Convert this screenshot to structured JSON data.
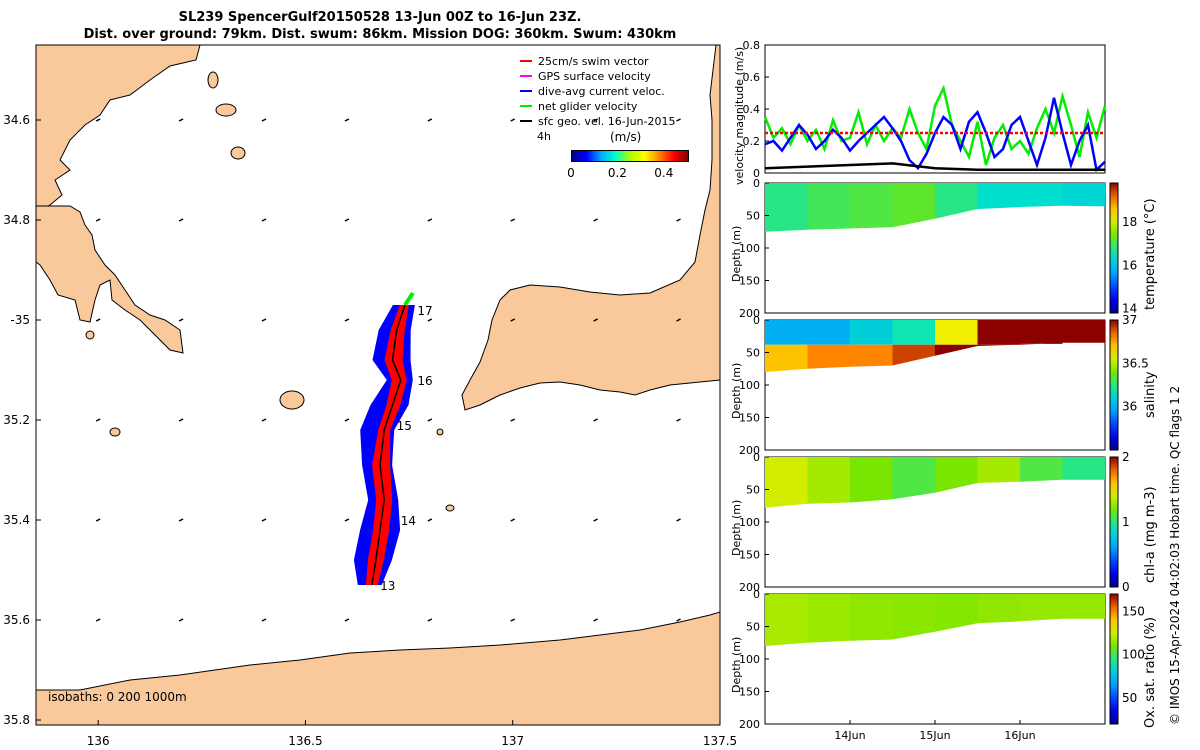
{
  "title_line1": "SL239 SpencerGulf20150528 13-Jun 00Z to 16-Jun 23Z.",
  "title_line2": "Dist. over ground: 79km. Dist. swum: 86km. Mission DOG: 360km. Swum: 430km",
  "credit": "© IMOS 15-Apr-2024 04:02:03 Hobart time. QC flags 1  2",
  "colors": {
    "land": "#f9c99b",
    "red": "#ff0000",
    "blue": "#0000ff",
    "green": "#00ee00",
    "magenta": "#ff00ff"
  },
  "chart_data": [
    {
      "type": "scatter",
      "name": "map",
      "xlim": [
        135.85,
        137.5
      ],
      "ylim": [
        -35.81,
        -34.45
      ],
      "x_ticks": [
        136,
        136.5,
        137,
        137.5
      ],
      "x_tick_labels": [
        "136",
        "136.5",
        "137",
        "137.5"
      ],
      "y_ticks": [
        -34.6,
        -34.8,
        -35.0,
        -35.2,
        -35.4,
        -35.6,
        -35.8
      ],
      "y_tick_labels": [
        "34.6",
        "34.8",
        "-35",
        "35.2",
        "35.4",
        "35.6",
        "35.8"
      ],
      "legend": [
        {
          "label": "25cm/s swim vector",
          "color": "#ff0000"
        },
        {
          "label": "GPS surface velocity",
          "color": "#ff00ff"
        },
        {
          "label": "dive-avg current veloc.",
          "color": "#0000ff"
        },
        {
          "label": "net glider velocity",
          "color": "#00ee00"
        },
        {
          "label": "sfc geo. vel. 16-Jun-2015",
          "color": "#000000"
        }
      ],
      "legend_note": "4h",
      "colorbar": {
        "label": "(m/s)",
        "ticks": [
          0,
          0.2,
          0.4
        ],
        "tick_labels": [
          "0",
          "0.2",
          "0.4"
        ],
        "range": [
          0,
          0.5
        ]
      },
      "isobaths_text": "isobaths: 0   200  1000m",
      "track": [
        [
          136.74,
          -34.97
        ],
        [
          136.72,
          -35.02
        ],
        [
          136.71,
          -35.08
        ],
        [
          136.73,
          -35.12
        ],
        [
          136.71,
          -35.17
        ],
        [
          136.69,
          -35.22
        ],
        [
          136.68,
          -35.29
        ],
        [
          136.69,
          -35.36
        ],
        [
          136.68,
          -35.42
        ],
        [
          136.67,
          -35.48
        ],
        [
          136.66,
          -35.53
        ]
      ],
      "day_labels": [
        {
          "text": "17",
          "lon": 136.77,
          "lat": -34.99
        },
        {
          "text": "16",
          "lon": 136.77,
          "lat": -35.13
        },
        {
          "text": "15",
          "lon": 136.72,
          "lat": -35.22
        },
        {
          "text": "14",
          "lon": 136.73,
          "lat": -35.41
        },
        {
          "text": "13",
          "lon": 136.68,
          "lat": -35.54
        }
      ],
      "geo_vel_grid_lons": [
        136.0,
        136.2,
        136.4,
        136.6,
        136.8,
        137.0,
        137.2,
        137.4
      ],
      "geo_vel_grid_lats": [
        -34.6,
        -34.8,
        -35.0,
        -35.2,
        -35.4,
        -35.6
      ]
    },
    {
      "type": "line",
      "name": "velocity",
      "ylabel": "velocity magnitude (m/s)",
      "ylim": [
        0,
        0.8
      ],
      "y_ticks": [
        0,
        0.2,
        0.4,
        0.6,
        0.8
      ],
      "y_tick_labels": [
        "0",
        "0.2",
        "0.4",
        "0.6",
        "0.8"
      ],
      "xlim": [
        0,
        4
      ],
      "series": [
        {
          "name": "net glider velocity",
          "color": "#00ee00",
          "x": [
            0,
            0.1,
            0.2,
            0.3,
            0.4,
            0.5,
            0.6,
            0.7,
            0.8,
            0.9,
            1.0,
            1.1,
            1.2,
            1.3,
            1.4,
            1.5,
            1.6,
            1.7,
            1.8,
            1.9,
            2.0,
            2.1,
            2.2,
            2.3,
            2.4,
            2.5,
            2.6,
            2.7,
            2.8,
            2.9,
            3.0,
            3.1,
            3.2,
            3.3,
            3.4,
            3.5,
            3.6,
            3.7,
            3.8,
            3.9,
            4.0
          ],
          "values": [
            0.35,
            0.22,
            0.28,
            0.18,
            0.3,
            0.2,
            0.27,
            0.15,
            0.33,
            0.2,
            0.22,
            0.38,
            0.18,
            0.3,
            0.2,
            0.28,
            0.22,
            0.4,
            0.25,
            0.15,
            0.42,
            0.53,
            0.3,
            0.2,
            0.1,
            0.32,
            0.05,
            0.22,
            0.3,
            0.15,
            0.2,
            0.12,
            0.28,
            0.4,
            0.25,
            0.48,
            0.3,
            0.1,
            0.38,
            0.22,
            0.42
          ]
        },
        {
          "name": "dive-avg current veloc.",
          "color": "#0000ff",
          "x": [
            0,
            0.1,
            0.2,
            0.3,
            0.4,
            0.5,
            0.6,
            0.7,
            0.8,
            0.9,
            1.0,
            1.1,
            1.2,
            1.3,
            1.4,
            1.5,
            1.6,
            1.7,
            1.8,
            1.9,
            2.0,
            2.1,
            2.2,
            2.3,
            2.4,
            2.5,
            2.6,
            2.7,
            2.8,
            2.9,
            3.0,
            3.1,
            3.2,
            3.3,
            3.4,
            3.5,
            3.6,
            3.7,
            3.8,
            3.9,
            4.0
          ],
          "values": [
            0.18,
            0.2,
            0.14,
            0.22,
            0.3,
            0.24,
            0.15,
            0.2,
            0.27,
            0.22,
            0.14,
            0.2,
            0.25,
            0.3,
            0.35,
            0.28,
            0.2,
            0.08,
            0.03,
            0.12,
            0.25,
            0.35,
            0.3,
            0.15,
            0.32,
            0.38,
            0.25,
            0.1,
            0.15,
            0.3,
            0.35,
            0.2,
            0.05,
            0.22,
            0.47,
            0.25,
            0.05,
            0.2,
            0.3,
            0.02,
            0.07
          ]
        },
        {
          "name": "sfc geo. vel.",
          "color": "#000000",
          "x": [
            0,
            0.5,
            1.0,
            1.5,
            2.0,
            2.5,
            3.0,
            3.5,
            4.0
          ],
          "values": [
            0.03,
            0.04,
            0.05,
            0.06,
            0.03,
            0.02,
            0.02,
            0.02,
            0.02
          ]
        },
        {
          "name": "25cm/s swim vector",
          "color": "#ff0000",
          "x": [
            0,
            4
          ],
          "values": [
            0.25,
            0.25
          ]
        }
      ]
    },
    {
      "type": "heatmap",
      "name": "temperature",
      "colorbar_label": "temperature (°C)",
      "clim": [
        13.8,
        19.8
      ],
      "colorbar_ticks": [
        14,
        16,
        18
      ],
      "colorbar_tick_labels": [
        "14",
        "16",
        "18"
      ],
      "ylabel": "Depth (m)",
      "ylim": [
        0,
        200
      ],
      "y_ticks": [
        0,
        50,
        100,
        150,
        200
      ],
      "y_tick_labels": [
        "0",
        "50",
        "100",
        "150",
        "200"
      ],
      "x": [
        0,
        0.5,
        1.0,
        1.5,
        2.0,
        2.5,
        3.0,
        3.5,
        4.0
      ],
      "max_depth": [
        75,
        72,
        70,
        68,
        55,
        40,
        37,
        35,
        36
      ],
      "values": [
        16.8,
        17.0,
        17.1,
        17.2,
        16.8,
        16.4,
        16.4,
        16.3,
        16.2
      ]
    },
    {
      "type": "heatmap",
      "name": "salinity",
      "colorbar_label": "salinity",
      "clim": [
        35.5,
        37
      ],
      "colorbar_ticks": [
        36,
        36.5,
        37
      ],
      "colorbar_tick_labels": [
        "36",
        "36.5",
        "37"
      ],
      "ylabel": "Depth (m)",
      "ylim": [
        0,
        200
      ],
      "y_ticks": [
        0,
        50,
        100,
        150,
        200
      ],
      "y_tick_labels": [
        "0",
        "50",
        "100",
        "150",
        "200"
      ],
      "x": [
        0,
        0.5,
        1.0,
        1.5,
        2.0,
        2.5,
        3.0,
        3.5,
        4.0
      ],
      "max_depth": [
        80,
        75,
        72,
        70,
        55,
        40,
        38,
        35,
        35
      ],
      "surface_values": [
        36.0,
        36.0,
        36.1,
        36.2,
        36.6,
        37.0,
        37.0,
        37.0,
        37.0
      ],
      "deep_values": [
        36.7,
        36.8,
        36.8,
        36.9,
        37.0,
        37.0,
        37.0,
        37.0,
        37.0
      ]
    },
    {
      "type": "heatmap",
      "name": "chl-a",
      "colorbar_label": "chl-a (mg m-3)",
      "clim": [
        0,
        2
      ],
      "colorbar_ticks": [
        0,
        1,
        2
      ],
      "colorbar_tick_labels": [
        "0",
        "1",
        "2"
      ],
      "ylabel": "Depth (m)",
      "ylim": [
        0,
        200
      ],
      "y_ticks": [
        0,
        50,
        100,
        150,
        200
      ],
      "y_tick_labels": [
        "0",
        "50",
        "100",
        "150",
        "200"
      ],
      "x": [
        0,
        0.5,
        1.0,
        1.5,
        2.0,
        2.5,
        3.0,
        3.5,
        4.0
      ],
      "max_depth": [
        78,
        72,
        70,
        65,
        55,
        40,
        38,
        35,
        35
      ],
      "values": [
        1.4,
        1.3,
        1.2,
        1.1,
        1.2,
        1.3,
        1.1,
        1.0,
        1.0
      ]
    },
    {
      "type": "heatmap",
      "name": "oxygen",
      "colorbar_label": "Ox. sat. ratio (%)",
      "clim": [
        20,
        170
      ],
      "colorbar_ticks": [
        50,
        100,
        150
      ],
      "colorbar_tick_labels": [
        "50",
        "100",
        "150"
      ],
      "ylabel": "Depth (m)",
      "ylim": [
        0,
        200
      ],
      "y_ticks": [
        0,
        50,
        100,
        150,
        200
      ],
      "y_tick_labels": [
        "0",
        "50",
        "100",
        "150",
        "200"
      ],
      "x": [
        0,
        0.5,
        1.0,
        1.5,
        2.0,
        2.5,
        3.0,
        3.5,
        4.0
      ],
      "max_depth": [
        80,
        75,
        72,
        70,
        58,
        45,
        42,
        38,
        38
      ],
      "values": [
        118,
        116,
        114,
        113,
        112,
        114,
        115,
        115,
        115
      ],
      "xlim": [
        0,
        4
      ],
      "x_ticks": [
        1,
        2,
        3
      ],
      "x_tick_labels": [
        "14Jun",
        "15Jun",
        "16Jun"
      ]
    }
  ]
}
